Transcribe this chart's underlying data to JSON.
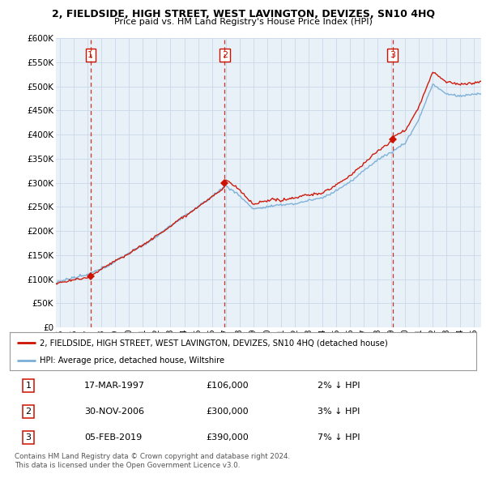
{
  "title": "2, FIELDSIDE, HIGH STREET, WEST LAVINGTON, DEVIZES, SN10 4HQ",
  "subtitle": "Price paid vs. HM Land Registry's House Price Index (HPI)",
  "ylim": [
    0,
    600000
  ],
  "xlim_start": 1994.7,
  "xlim_end": 2025.5,
  "hpi_color": "#7aaed6",
  "price_color": "#cc1100",
  "vline_color": "#cc1100",
  "grid_color": "#c8d8e8",
  "bg_color": "#e8f0f8",
  "sale_dates": [
    1997.21,
    2006.92,
    2019.09
  ],
  "sale_prices": [
    106000,
    300000,
    390000
  ],
  "sale_labels": [
    "1",
    "2",
    "3"
  ],
  "legend_line1": "2, FIELDSIDE, HIGH STREET, WEST LAVINGTON, DEVIZES, SN10 4HQ (detached house)",
  "legend_line2": "HPI: Average price, detached house, Wiltshire",
  "table_rows": [
    [
      "1",
      "17-MAR-1997",
      "£106,000",
      "2% ↓ HPI"
    ],
    [
      "2",
      "30-NOV-2006",
      "£300,000",
      "3% ↓ HPI"
    ],
    [
      "3",
      "05-FEB-2019",
      "£390,000",
      "7% ↓ HPI"
    ]
  ],
  "footnote": "Contains HM Land Registry data © Crown copyright and database right 2024.\nThis data is licensed under the Open Government Licence v3.0.",
  "x_ticks": [
    1995,
    1996,
    1997,
    1998,
    1999,
    2000,
    2001,
    2002,
    2003,
    2004,
    2005,
    2006,
    2007,
    2008,
    2009,
    2010,
    2011,
    2012,
    2013,
    2014,
    2015,
    2016,
    2017,
    2018,
    2019,
    2020,
    2021,
    2022,
    2023,
    2024,
    2025
  ]
}
